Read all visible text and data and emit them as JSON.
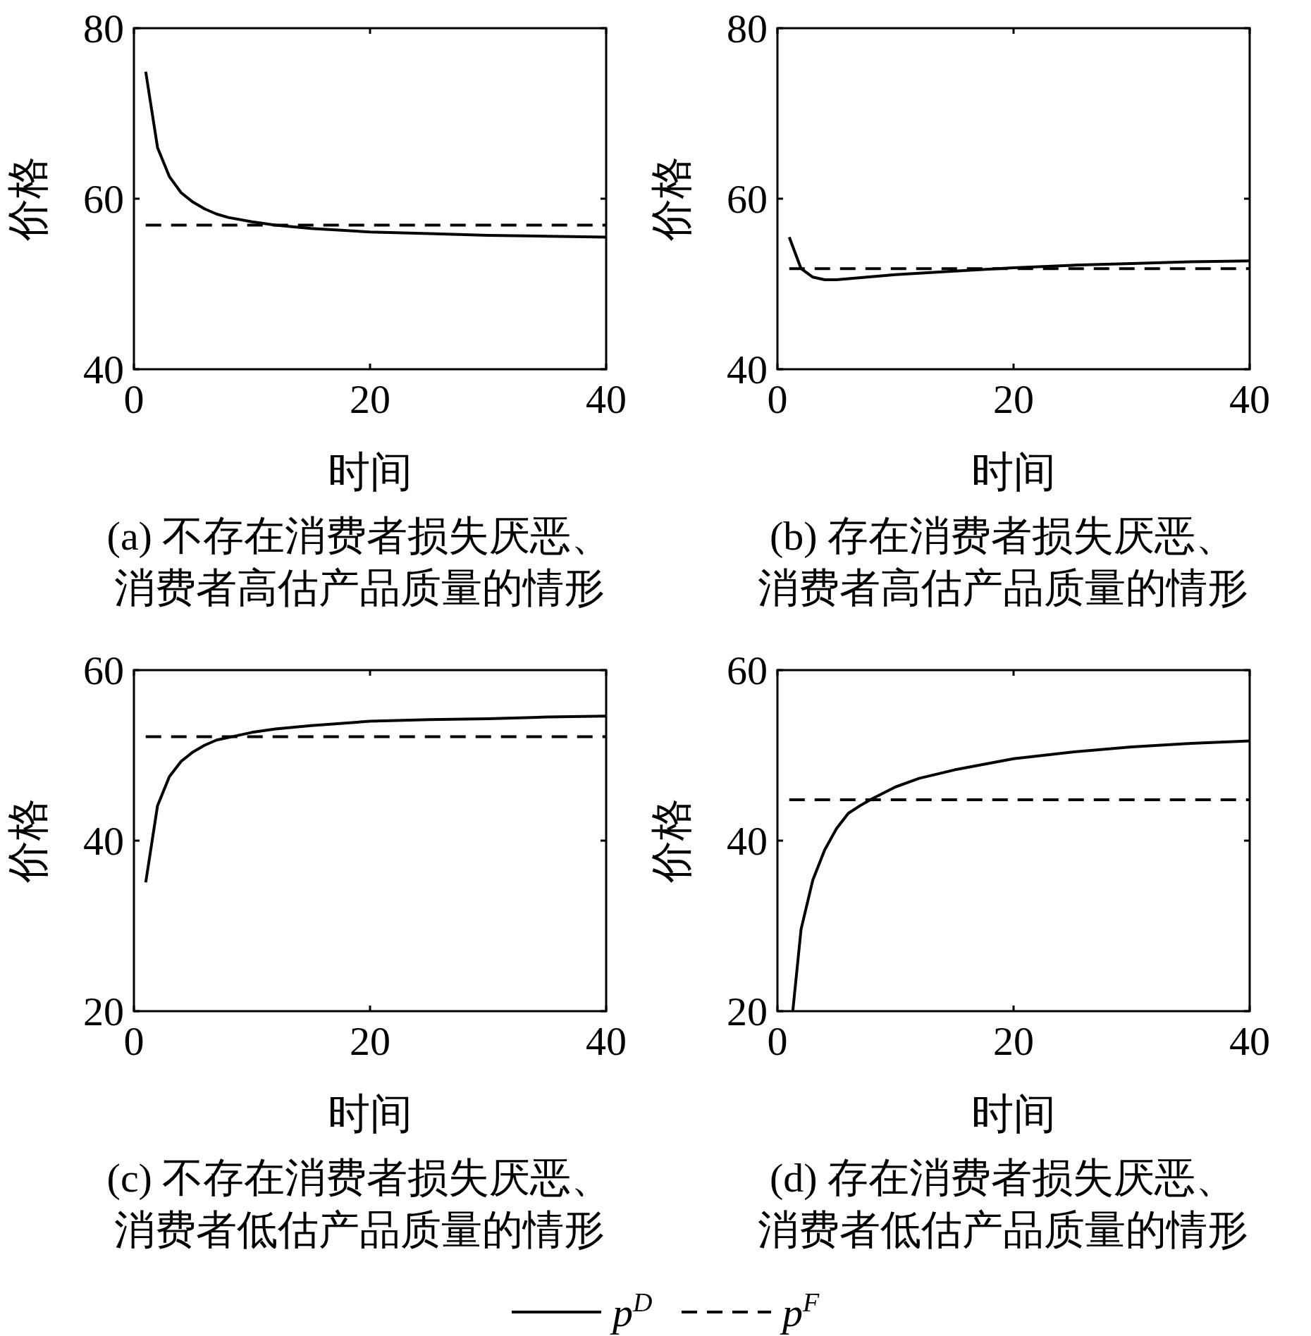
{
  "chart_data": [
    {
      "type": "line",
      "title": "(a) 不存在消费者损失厌恶、消费者高估产品质量的情形",
      "xlabel": "时间",
      "ylabel": "价格",
      "xlim": [
        0,
        40
      ],
      "ylim": [
        40,
        80
      ],
      "xticks": [
        0,
        20,
        40
      ],
      "yticks": [
        40,
        60,
        80
      ],
      "grid": false,
      "legend": "bottom",
      "series": [
        {
          "name": "p$^{D}$",
          "color": "#000000",
          "line_style": "solid",
          "x": [
            1,
            2,
            3,
            4,
            5,
            6,
            7,
            8,
            10,
            12,
            15,
            20,
            25,
            30,
            35,
            40
          ],
          "values": [
            74.9,
            66.0,
            62.6,
            60.7,
            59.6,
            58.8,
            58.2,
            57.8,
            57.3,
            56.9,
            56.5,
            56.1,
            55.9,
            55.7,
            55.6,
            55.5
          ]
        },
        {
          "name": "p$^{F}$",
          "color": "#000000",
          "line_style": "dashed",
          "x": [
            1,
            40
          ],
          "values": [
            56.9,
            56.9
          ]
        }
      ]
    },
    {
      "type": "line",
      "title": "(b) 存在消费者损失厌恶、消费者高估产品质量的情形",
      "xlabel": "时间",
      "ylabel": "价格",
      "xlim": [
        0,
        40
      ],
      "ylim": [
        40,
        80
      ],
      "xticks": [
        0,
        20,
        40
      ],
      "yticks": [
        40,
        60,
        80
      ],
      "grid": false,
      "series": [
        {
          "color": "#000000",
          "line_style": "solid",
          "x": [
            1,
            2,
            3,
            4,
            5,
            10,
            15,
            20,
            25,
            30,
            35,
            40
          ],
          "values": [
            55.5,
            51.8,
            50.8,
            50.5,
            50.5,
            51.1,
            51.5,
            51.9,
            52.2,
            52.4,
            52.6,
            52.7
          ]
        },
        {
          "color": "#000000",
          "line_style": "dashed",
          "x": [
            1,
            40
          ],
          "values": [
            51.8,
            51.8
          ]
        }
      ]
    },
    {
      "type": "line",
      "title": "(c) 不存在消费者损失厌恶、消费者低估产品质量的情形",
      "xlabel": "时间",
      "ylabel": "价格",
      "xlim": [
        0,
        40
      ],
      "ylim": [
        20,
        60
      ],
      "xticks": [
        0,
        20,
        40
      ],
      "yticks": [
        20,
        40,
        60
      ],
      "grid": false,
      "series": [
        {
          "color": "#000000",
          "line_style": "solid",
          "x": [
            1,
            2,
            3,
            4,
            5,
            6,
            7,
            8,
            10,
            12,
            15,
            20,
            25,
            30,
            35,
            40
          ],
          "values": [
            35.1,
            44.1,
            47.5,
            49.3,
            50.4,
            51.2,
            51.8,
            52.1,
            52.7,
            53.1,
            53.5,
            54.0,
            54.2,
            54.3,
            54.5,
            54.6
          ]
        },
        {
          "color": "#000000",
          "line_style": "dashed",
          "x": [
            1,
            40
          ],
          "values": [
            52.2,
            52.2
          ]
        }
      ]
    },
    {
      "type": "line",
      "title": "(d) 存在消费者损失厌恶、消费者低估产品质量的情形",
      "xlabel": "时间",
      "ylabel": "价格",
      "xlim": [
        0,
        40
      ],
      "ylim": [
        20,
        60
      ],
      "xticks": [
        0,
        20,
        40
      ],
      "yticks": [
        20,
        40,
        60
      ],
      "grid": false,
      "series": [
        {
          "color": "#000000",
          "line_style": "solid",
          "x": [
            1.3,
            2,
            3,
            4,
            5,
            6,
            7,
            8,
            10,
            12,
            15,
            20,
            25,
            30,
            35,
            40
          ],
          "values": [
            20,
            29.6,
            35.4,
            38.9,
            41.4,
            43.2,
            44.1,
            44.9,
            46.3,
            47.3,
            48.3,
            49.6,
            50.4,
            51.0,
            51.4,
            51.7
          ]
        },
        {
          "color": "#000000",
          "line_style": "dashed",
          "x": [
            1,
            40
          ],
          "values": [
            44.8,
            44.8
          ]
        }
      ]
    }
  ]
}
